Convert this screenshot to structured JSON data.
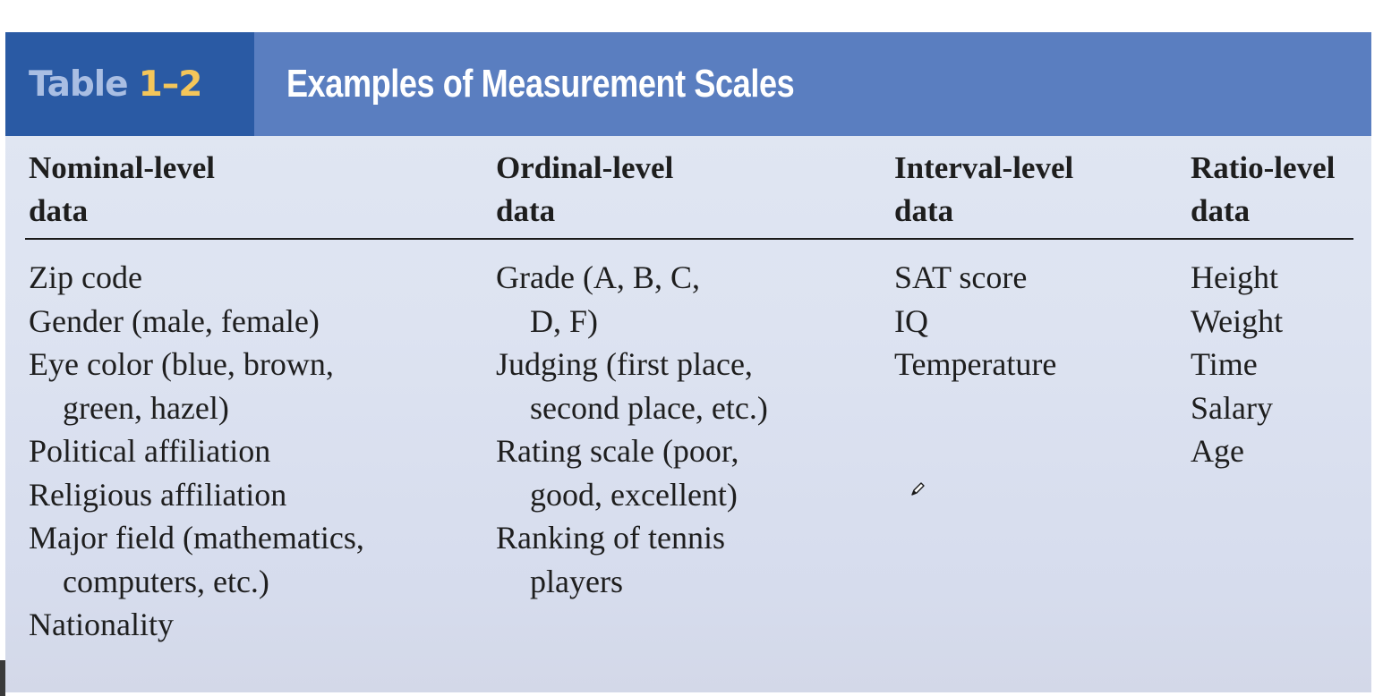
{
  "table": {
    "label_word": "Table",
    "label_number": "1–2",
    "caption": "Examples of Measurement Scales"
  },
  "columns": [
    {
      "header_lines": [
        "Nominal-level",
        "data"
      ],
      "items": [
        "Zip code",
        "Gender (male, female)",
        "Eye color (blue, brown,",
        "green, hazel)",
        "Political affiliation",
        "Religious affiliation",
        "Major field (mathematics,",
        "computers, etc.)",
        "Nationality"
      ]
    },
    {
      "header_lines": [
        "Ordinal-level",
        "data"
      ],
      "items": [
        "Grade (A, B, C,",
        "D, F)",
        "Judging (first place,",
        "second place, etc.)",
        "Rating scale (poor,",
        "good, excellent)",
        "Ranking of tennis",
        "players"
      ]
    },
    {
      "header_lines": [
        "Interval-level",
        "data"
      ],
      "items": [
        "SAT score",
        "IQ",
        "Temperature"
      ]
    },
    {
      "header_lines": [
        "Ratio-level",
        "data"
      ],
      "items": [
        "Height",
        "Weight",
        "Time",
        "Salary",
        "Age"
      ]
    }
  ],
  "icons": {
    "pen_cursor": "pencil-cursor-icon"
  }
}
